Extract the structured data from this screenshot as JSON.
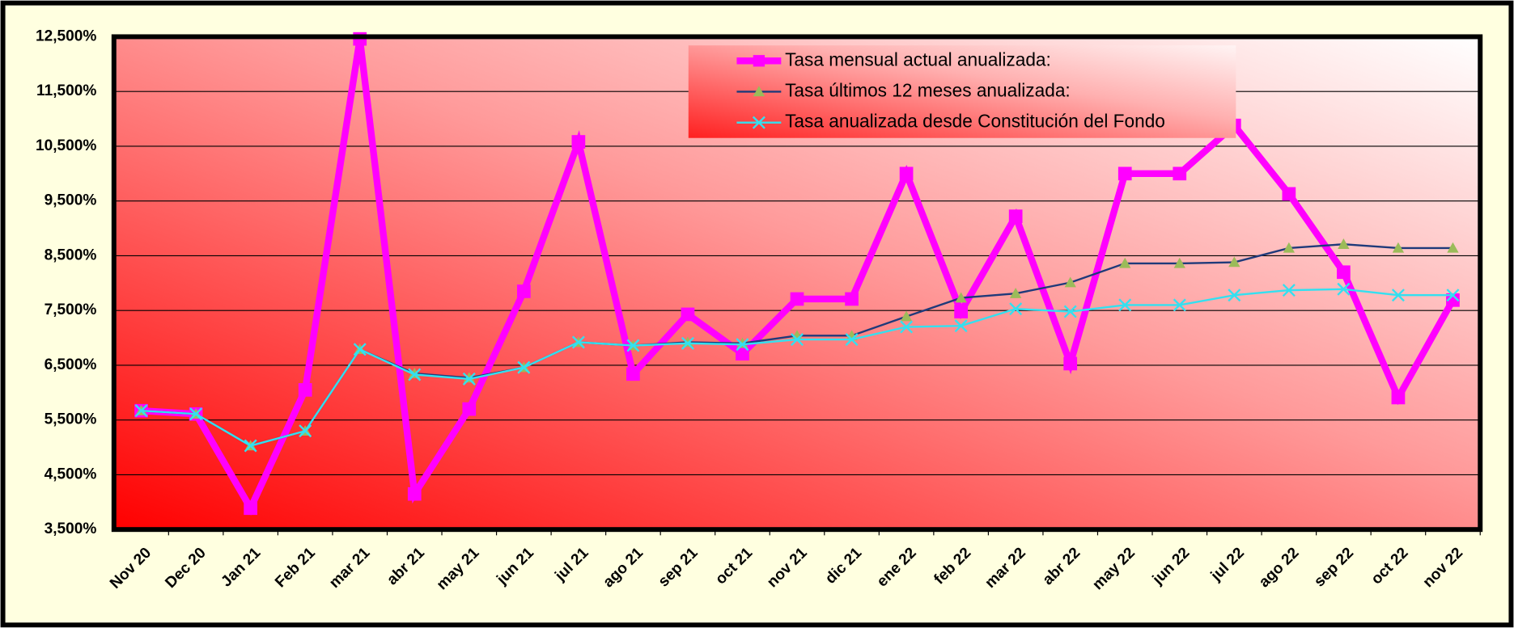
{
  "chart_data": {
    "type": "line",
    "categories": [
      "Nov 20",
      "Dec 20",
      "Jan 21",
      "Feb 21",
      "mar 21",
      "abr 21",
      "may 21",
      "jun 21",
      "jul 21",
      "ago 21",
      "sep 21",
      "oct 21",
      "nov 21",
      "dic 21",
      "ene 22",
      "feb 22",
      "mar 22",
      "abr 22",
      "may 22",
      "jun 22",
      "jul 22",
      "ago 22",
      "sep 22",
      "oct 22",
      "nov 22"
    ],
    "series": [
      {
        "name": "Tasa mensual actual anualizada:",
        "color": "#ff00ff",
        "marker": "square",
        "values": [
          5.67,
          5.61,
          3.89,
          6.05,
          12.46,
          4.15,
          5.7,
          7.85,
          10.58,
          6.34,
          7.43,
          6.71,
          7.71,
          7.71,
          10.0,
          7.48,
          9.22,
          6.53,
          10.0,
          10.0,
          10.88,
          9.63,
          8.2,
          5.91,
          7.69
        ]
      },
      {
        "name": "Tasa últimos 12 meses anualizada:",
        "color": "#1f3a7a",
        "marker_color": "#9bbb59",
        "marker": "triangle",
        "values": [
          5.67,
          5.61,
          5.03,
          5.3,
          6.79,
          6.35,
          6.27,
          6.46,
          6.92,
          6.86,
          6.92,
          6.9,
          7.04,
          7.04,
          7.39,
          7.73,
          7.81,
          8.01,
          8.36,
          8.36,
          8.38,
          8.64,
          8.71,
          8.64,
          8.64
        ]
      },
      {
        "name": "Tasa anualizada desde Constitución del Fondo",
        "color": "#33e0f0",
        "marker": "x",
        "values": [
          5.67,
          5.61,
          5.03,
          5.3,
          6.79,
          6.33,
          6.25,
          6.46,
          6.92,
          6.86,
          6.9,
          6.88,
          6.97,
          6.97,
          7.2,
          7.22,
          7.53,
          7.48,
          7.6,
          7.6,
          7.78,
          7.87,
          7.89,
          7.78,
          7.78
        ]
      }
    ],
    "ylim": [
      3.5,
      12.5
    ],
    "yticks": [
      {
        "value": 3.5,
        "label": "3,500%"
      },
      {
        "value": 4.5,
        "label": "4,500%"
      },
      {
        "value": 5.5,
        "label": "5,500%"
      },
      {
        "value": 6.5,
        "label": "6,500%"
      },
      {
        "value": 7.5,
        "label": "7,500%"
      },
      {
        "value": 8.5,
        "label": "8,500%"
      },
      {
        "value": 9.5,
        "label": "9,500%"
      },
      {
        "value": 10.5,
        "label": "10,500%"
      },
      {
        "value": 11.5,
        "label": "11,500%"
      },
      {
        "value": 12.5,
        "label": "12,500%"
      }
    ],
    "grid": true,
    "legend": "top"
  }
}
